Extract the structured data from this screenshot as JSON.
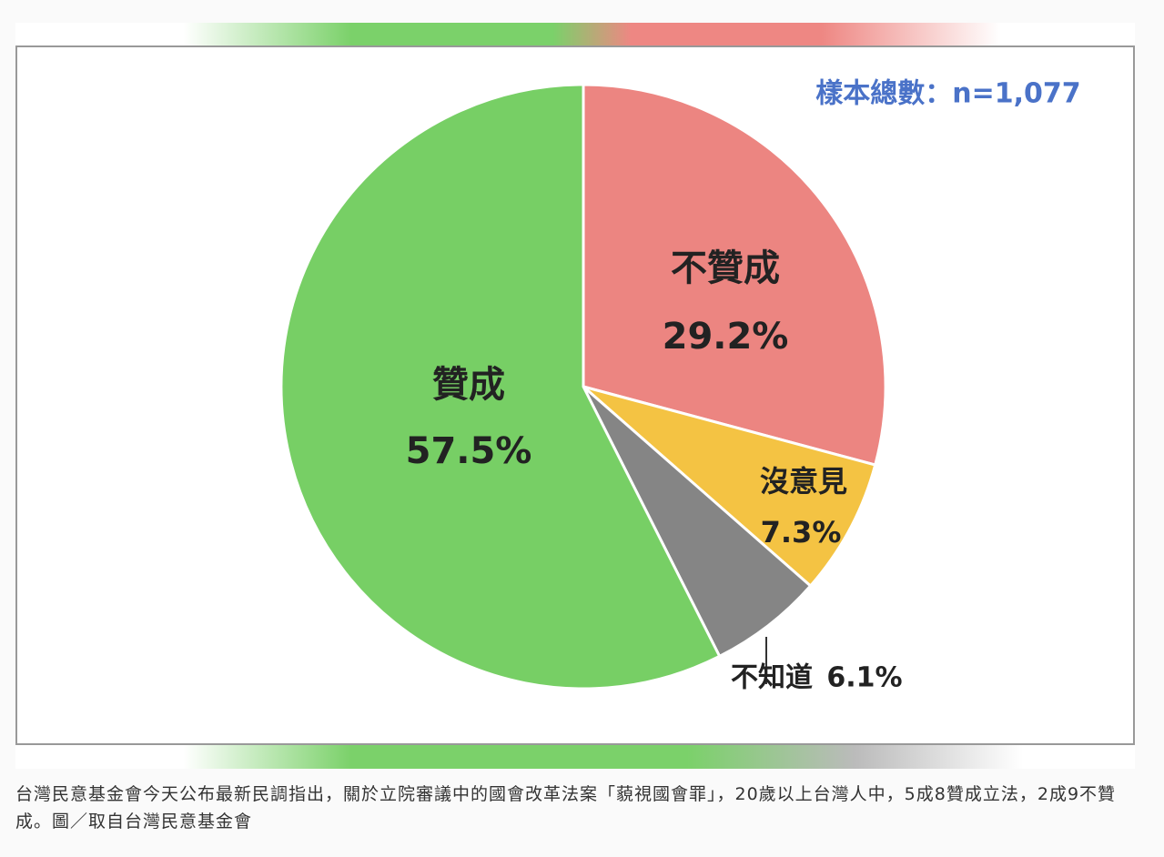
{
  "chart_data": {
    "type": "pie",
    "annotation": "樣本總數：n=1,077",
    "categories": [
      "不贊成",
      "沒意見",
      "不知道",
      "贊成"
    ],
    "values": [
      29.2,
      7.3,
      6.1,
      57.5
    ],
    "value_labels": [
      "29.2%",
      "7.3%",
      "6.1%",
      "57.5%"
    ],
    "colors": [
      "#ec8581",
      "#f4c343",
      "#858585",
      "#77cf65"
    ]
  },
  "caption": "台灣民意基金會今天公布最新民調指出，關於立院審議中的國會改革法案「藐視國會罪」，20歲以上台灣人中，5成8贊成立法，2成9不贊成。圖／取自台灣民意基金會"
}
